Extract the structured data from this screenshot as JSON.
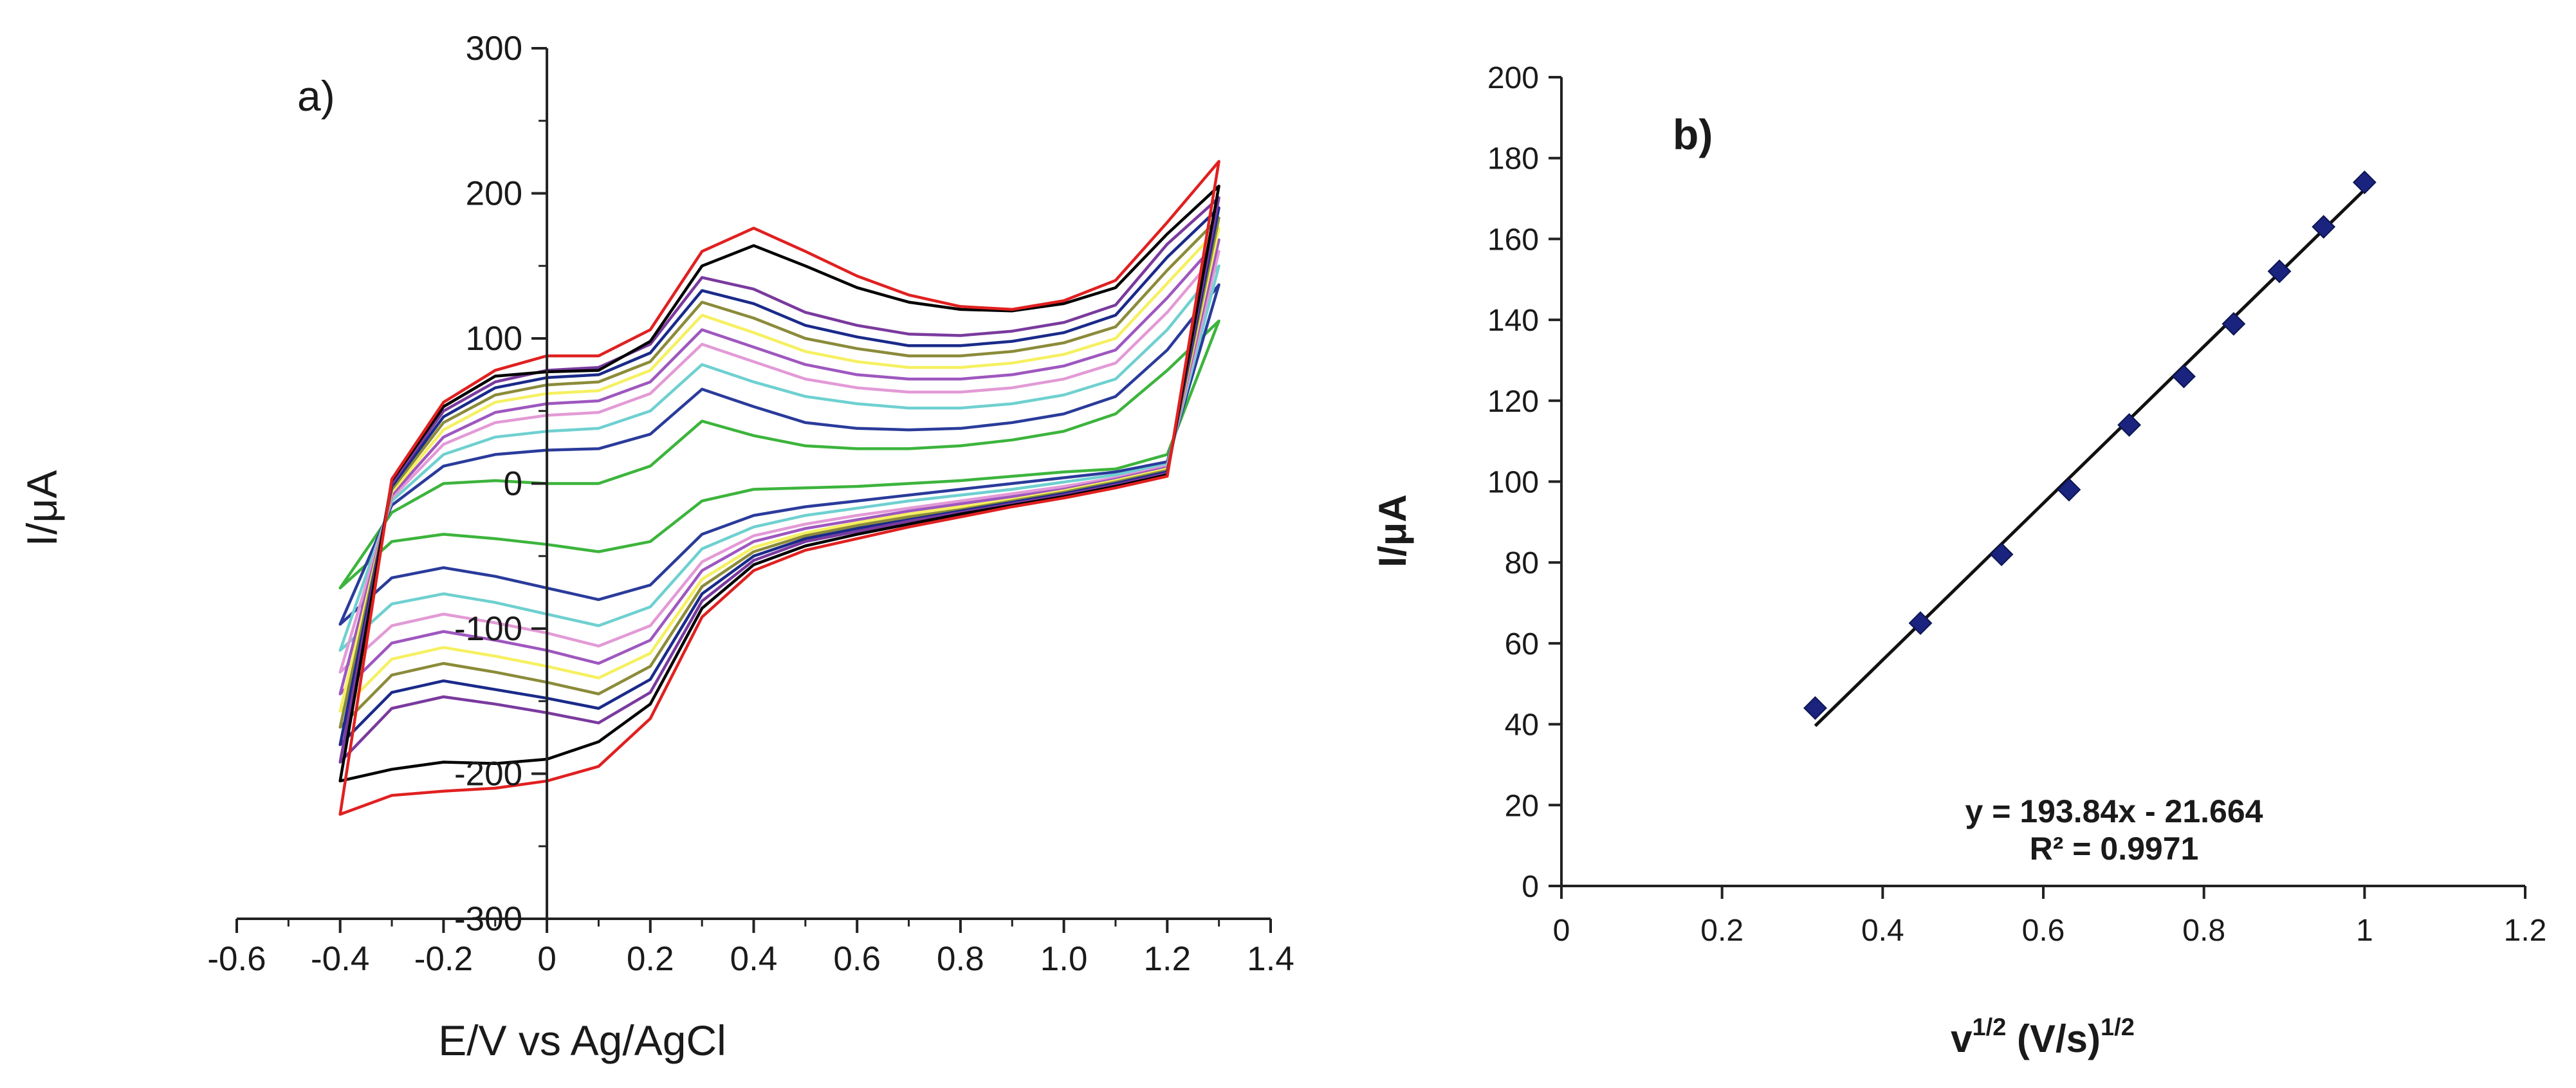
{
  "chart_data": [
    {
      "type": "line",
      "panel_label": "a)",
      "xlabel": "E/V vs Ag/AgCl",
      "ylabel": "I/μA",
      "xlim": [
        -0.6,
        1.4
      ],
      "ylim": [
        -300,
        300
      ],
      "x_ticks": [
        -0.6,
        -0.4,
        -0.2,
        0,
        0.2,
        0.4,
        0.6,
        0.8,
        1.0,
        1.2,
        1.4
      ],
      "x_tick_labels": [
        "-0.6",
        "-0.4",
        "-0.2",
        "0",
        "0.2",
        "0.4",
        "0.6",
        "0.8",
        "1.0",
        "1.2",
        "1.4"
      ],
      "y_ticks": [
        -300,
        -200,
        -100,
        0,
        100,
        200,
        300
      ],
      "y_tick_labels": [
        "-300",
        "-200",
        "-100",
        "0",
        "100",
        "200",
        "300"
      ],
      "grid": false,
      "series": [
        {
          "color": "#3cb43c",
          "x": [
            -0.4,
            -0.3,
            -0.2,
            -0.1,
            0.0,
            0.1,
            0.2,
            0.3,
            0.4,
            0.5,
            0.6,
            0.7,
            0.8,
            0.9,
            1.0,
            1.1,
            1.2,
            1.3,
            1.2,
            1.1,
            1.0,
            0.9,
            0.8,
            0.7,
            0.6,
            0.5,
            0.4,
            0.3,
            0.2,
            0.1,
            0.0,
            -0.1,
            -0.2,
            -0.3,
            -0.4
          ],
          "y": [
            -72,
            -20,
            0,
            2,
            0,
            0,
            12,
            43,
            33,
            26,
            24,
            24,
            26,
            30,
            36,
            48,
            78,
            112,
            20,
            10,
            8,
            5,
            2,
            0,
            -2,
            -3,
            -4,
            -12,
            -40,
            -47,
            -42,
            -38,
            -35,
            -40,
            -72
          ]
        },
        {
          "color": "#2a3b9b",
          "x": [
            -0.4,
            -0.3,
            -0.2,
            -0.1,
            0.0,
            0.1,
            0.2,
            0.3,
            0.4,
            0.5,
            0.6,
            0.7,
            0.8,
            0.9,
            1.0,
            1.1,
            1.2,
            1.3,
            1.2,
            1.1,
            1.0,
            0.9,
            0.8,
            0.7,
            0.6,
            0.5,
            0.4,
            0.3,
            0.2,
            0.1,
            0.0,
            -0.1,
            -0.2,
            -0.3,
            -0.4
          ],
          "y": [
            -97,
            -15,
            12,
            20,
            23,
            24,
            34,
            65,
            53,
            42,
            38,
            37,
            38,
            42,
            48,
            60,
            92,
            137,
            15,
            8,
            4,
            0,
            -4,
            -8,
            -12,
            -16,
            -22,
            -35,
            -70,
            -80,
            -72,
            -64,
            -58,
            -65,
            -97
          ]
        },
        {
          "color": "#6fd0d0",
          "x": [
            -0.4,
            -0.3,
            -0.2,
            -0.1,
            0.0,
            0.1,
            0.2,
            0.3,
            0.4,
            0.5,
            0.6,
            0.7,
            0.8,
            0.9,
            1.0,
            1.1,
            1.2,
            1.3,
            1.2,
            1.1,
            1.0,
            0.9,
            0.8,
            0.7,
            0.6,
            0.5,
            0.4,
            0.3,
            0.2,
            0.1,
            0.0,
            -0.1,
            -0.2,
            -0.3,
            -0.4
          ],
          "y": [
            -115,
            -12,
            20,
            32,
            36,
            38,
            50,
            82,
            70,
            60,
            55,
            52,
            52,
            55,
            61,
            72,
            106,
            150,
            13,
            6,
            1,
            -4,
            -8,
            -12,
            -17,
            -22,
            -30,
            -45,
            -85,
            -98,
            -90,
            -82,
            -76,
            -83,
            -115
          ]
        },
        {
          "color": "#e39ad6",
          "x": [
            -0.4,
            -0.3,
            -0.2,
            -0.1,
            0.0,
            0.1,
            0.2,
            0.3,
            0.4,
            0.5,
            0.6,
            0.7,
            0.8,
            0.9,
            1.0,
            1.1,
            1.2,
            1.3,
            1.2,
            1.1,
            1.0,
            0.9,
            0.8,
            0.7,
            0.6,
            0.5,
            0.4,
            0.3,
            0.2,
            0.1,
            0.0,
            -0.1,
            -0.2,
            -0.3,
            -0.4
          ],
          "y": [
            -130,
            -10,
            27,
            42,
            47,
            49,
            62,
            96,
            84,
            72,
            66,
            63,
            63,
            66,
            72,
            83,
            118,
            160,
            12,
            4,
            -2,
            -7,
            -12,
            -17,
            -22,
            -28,
            -36,
            -54,
            -98,
            -112,
            -103,
            -96,
            -90,
            -98,
            -130
          ]
        },
        {
          "color": "#9e57bf",
          "x": [
            -0.4,
            -0.3,
            -0.2,
            -0.1,
            0.0,
            0.1,
            0.2,
            0.3,
            0.4,
            0.5,
            0.6,
            0.7,
            0.8,
            0.9,
            1.0,
            1.1,
            1.2,
            1.3,
            1.2,
            1.1,
            1.0,
            0.9,
            0.8,
            0.7,
            0.6,
            0.5,
            0.4,
            0.3,
            0.2,
            0.1,
            0.0,
            -0.1,
            -0.2,
            -0.3,
            -0.4
          ],
          "y": [
            -145,
            -8,
            32,
            49,
            55,
            57,
            70,
            106,
            94,
            82,
            75,
            72,
            72,
            75,
            81,
            92,
            128,
            168,
            11,
            3,
            -4,
            -9,
            -14,
            -19,
            -25,
            -31,
            -40,
            -60,
            -108,
            -124,
            -115,
            -108,
            -102,
            -110,
            -145
          ]
        },
        {
          "color": "#f5f060",
          "x": [
            -0.4,
            -0.3,
            -0.2,
            -0.1,
            0.0,
            0.1,
            0.2,
            0.3,
            0.4,
            0.5,
            0.6,
            0.7,
            0.8,
            0.9,
            1.0,
            1.1,
            1.2,
            1.3,
            1.2,
            1.1,
            1.0,
            0.9,
            0.8,
            0.7,
            0.6,
            0.5,
            0.4,
            0.3,
            0.2,
            0.1,
            0.0,
            -0.1,
            -0.2,
            -0.3,
            -0.4
          ],
          "y": [
            -157,
            -6,
            37,
            56,
            62,
            64,
            78,
            116,
            104,
            91,
            84,
            80,
            80,
            83,
            89,
            100,
            138,
            176,
            10,
            2,
            -5,
            -11,
            -16,
            -21,
            -27,
            -34,
            -44,
            -66,
            -117,
            -134,
            -126,
            -119,
            -113,
            -121,
            -157
          ]
        },
        {
          "color": "#8b8b3a",
          "x": [
            -0.4,
            -0.3,
            -0.2,
            -0.1,
            0.0,
            0.1,
            0.2,
            0.3,
            0.4,
            0.5,
            0.6,
            0.7,
            0.8,
            0.9,
            1.0,
            1.1,
            1.2,
            1.3,
            1.2,
            1.1,
            1.0,
            0.9,
            0.8,
            0.7,
            0.6,
            0.5,
            0.4,
            0.3,
            0.2,
            0.1,
            0.0,
            -0.1,
            -0.2,
            -0.3,
            -0.4
          ],
          "y": [
            -168,
            -4,
            42,
            61,
            68,
            70,
            84,
            125,
            114,
            100,
            93,
            88,
            88,
            91,
            97,
            108,
            147,
            183,
            9,
            1,
            -6,
            -12,
            -18,
            -23,
            -29,
            -36,
            -47,
            -71,
            -126,
            -145,
            -137,
            -130,
            -124,
            -132,
            -168
          ]
        },
        {
          "color": "#1a2a8a",
          "x": [
            -0.4,
            -0.3,
            -0.2,
            -0.1,
            0.0,
            0.1,
            0.2,
            0.3,
            0.4,
            0.5,
            0.6,
            0.7,
            0.8,
            0.9,
            1.0,
            1.1,
            1.2,
            1.3,
            1.2,
            1.1,
            1.0,
            0.9,
            0.8,
            0.7,
            0.6,
            0.5,
            0.4,
            0.3,
            0.2,
            0.1,
            0.0,
            -0.1,
            -0.2,
            -0.3,
            -0.4
          ],
          "y": [
            -180,
            -2,
            46,
            66,
            73,
            75,
            90,
            133,
            124,
            109,
            101,
            95,
            95,
            98,
            104,
            116,
            156,
            190,
            8,
            0,
            -7,
            -13,
            -19,
            -25,
            -31,
            -38,
            -50,
            -76,
            -135,
            -155,
            -148,
            -142,
            -136,
            -144,
            -180
          ]
        },
        {
          "color": "#7a3a9e",
          "x": [
            -0.4,
            -0.3,
            -0.2,
            -0.1,
            0.0,
            0.1,
            0.2,
            0.3,
            0.4,
            0.5,
            0.6,
            0.7,
            0.8,
            0.9,
            1.0,
            1.1,
            1.2,
            1.3,
            1.2,
            1.1,
            1.0,
            0.9,
            0.8,
            0.7,
            0.6,
            0.5,
            0.4,
            0.3,
            0.2,
            0.1,
            0.0,
            -0.1,
            -0.2,
            -0.3,
            -0.4
          ],
          "y": [
            -192,
            0,
            50,
            70,
            78,
            80,
            96,
            142,
            134,
            118,
            109,
            103,
            102,
            105,
            111,
            123,
            165,
            197,
            7,
            -1,
            -8,
            -14,
            -20,
            -26,
            -33,
            -40,
            -53,
            -81,
            -144,
            -165,
            -158,
            -152,
            -147,
            -155,
            -192
          ]
        },
        {
          "color": "#000000",
          "x": [
            -0.4,
            -0.3,
            -0.2,
            -0.1,
            0.0,
            0.1,
            0.2,
            0.3,
            0.4,
            0.5,
            0.6,
            0.7,
            0.8,
            0.9,
            1.0,
            1.1,
            1.2,
            1.3,
            1.2,
            1.1,
            1.0,
            0.9,
            0.8,
            0.7,
            0.6,
            0.5,
            0.4,
            0.3,
            0.2,
            0.1,
            0.0,
            -0.1,
            -0.2,
            -0.3,
            -0.4
          ],
          "y": [
            -205,
            2,
            53,
            74,
            77,
            78,
            98,
            150,
            164,
            150,
            135,
            125,
            120,
            119,
            124,
            135,
            172,
            205,
            6,
            -2,
            -9,
            -15,
            -21,
            -28,
            -35,
            -43,
            -56,
            -86,
            -152,
            -178,
            -190,
            -193,
            -192,
            -197,
            -205
          ]
        },
        {
          "color": "#e02020",
          "x": [
            -0.4,
            -0.3,
            -0.2,
            -0.1,
            0.0,
            0.1,
            0.2,
            0.3,
            0.4,
            0.5,
            0.6,
            0.7,
            0.8,
            0.9,
            1.0,
            1.1,
            1.2,
            1.3,
            1.2,
            1.1,
            1.0,
            0.9,
            0.8,
            0.7,
            0.6,
            0.5,
            0.4,
            0.3,
            0.2,
            0.1,
            0.0,
            -0.1,
            -0.2,
            -0.3,
            -0.4
          ],
          "y": [
            -228,
            3,
            56,
            78,
            88,
            88,
            106,
            160,
            176,
            160,
            143,
            130,
            122,
            120,
            126,
            140,
            180,
            222,
            5,
            -3,
            -10,
            -16,
            -23,
            -30,
            -38,
            -46,
            -60,
            -92,
            -162,
            -195,
            -205,
            -210,
            -212,
            -215,
            -228
          ]
        }
      ]
    },
    {
      "type": "scatter",
      "panel_label": "b)",
      "xlabel_base": "v",
      "xlabel_sup1": "1/2",
      "xlabel_mid": " (V/s)",
      "xlabel_sup2": "1/2",
      "ylabel": "I/μA",
      "xlim": [
        0,
        1.2
      ],
      "ylim": [
        0,
        200
      ],
      "x_ticks": [
        0,
        0.2,
        0.4,
        0.6,
        0.8,
        1.0,
        1.2
      ],
      "x_tick_labels": [
        "0",
        "0.2",
        "0.4",
        "0.6",
        "0.8",
        "1",
        "1.2"
      ],
      "y_ticks": [
        0,
        20,
        40,
        60,
        80,
        100,
        120,
        140,
        160,
        180,
        200
      ],
      "y_tick_labels": [
        "0",
        "20",
        "40",
        "60",
        "80",
        "100",
        "120",
        "140",
        "160",
        "180",
        "200"
      ],
      "grid": false,
      "marker_color": "#1a237e",
      "x": [
        0.316,
        0.447,
        0.548,
        0.632,
        0.707,
        0.775,
        0.837,
        0.894,
        0.949,
        1.0
      ],
      "y": [
        44,
        65,
        82,
        98,
        114,
        126,
        139,
        152,
        163,
        174
      ],
      "trendline": {
        "slope": 193.84,
        "intercept": -21.664,
        "x_range": [
          0.316,
          1.0
        ]
      },
      "equation": "y = 193.84x - 21.664",
      "r_squared": "R² = 0.9971"
    }
  ]
}
